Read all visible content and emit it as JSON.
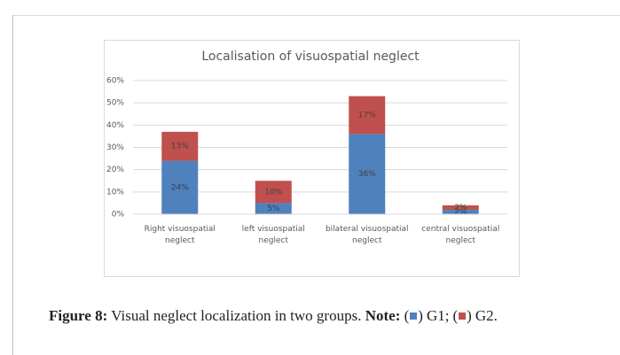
{
  "chart_data": {
    "type": "stacked_bar",
    "title": "Localisation of visuospatial neglect",
    "categories": [
      "Right visuospatial neglect",
      "left visuospatial neglect",
      "bilateral visuospatial neglect",
      "central visuospatial neglect"
    ],
    "series": [
      {
        "name": "G1",
        "color": "#4f81bd",
        "values": [
          24,
          5,
          36,
          2
        ],
        "value_labels": [
          "24%",
          "5%",
          "36%",
          "2%"
        ]
      },
      {
        "name": "G2",
        "color": "#c0504d",
        "values": [
          13,
          10,
          17,
          2
        ],
        "value_labels": [
          "13%",
          "10%",
          "17%",
          "2%"
        ]
      }
    ],
    "ylim": [
      0,
      60
    ],
    "yticks": [
      {
        "value": 0,
        "label": "0%"
      },
      {
        "value": 10,
        "label": "10%"
      },
      {
        "value": 20,
        "label": "20%"
      },
      {
        "value": 30,
        "label": "30%"
      },
      {
        "value": 40,
        "label": "40%"
      },
      {
        "value": 50,
        "label": "50%"
      },
      {
        "value": 60,
        "label": "60%"
      }
    ],
    "grid": true
  },
  "caption": {
    "label": "Figure 8:",
    "text": "Visual neglect localization in two groups.",
    "note_label": "Note:",
    "punctuation": [
      "(",
      ")",
      ";",
      "(",
      ")",
      "."
    ]
  }
}
